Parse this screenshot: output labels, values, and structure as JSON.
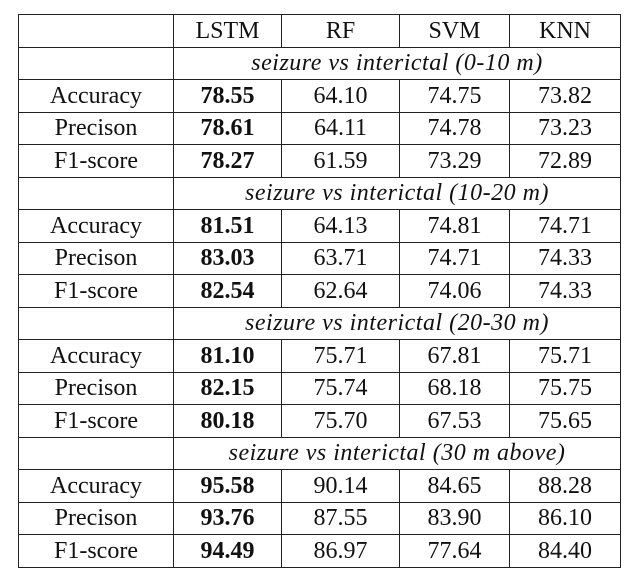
{
  "table": {
    "columns": [
      "",
      "LSTM",
      "RF",
      "SVM",
      "KNN"
    ],
    "sections": [
      {
        "title": "seizure vs interictal (0-10 m)",
        "rows": [
          {
            "metric": "Accuracy",
            "values": [
              "78.55",
              "64.10",
              "74.75",
              "73.82"
            ]
          },
          {
            "metric": "Precison",
            "values": [
              "78.61",
              "64.11",
              "74.78",
              "73.23"
            ]
          },
          {
            "metric": "F1-score",
            "values": [
              "78.27",
              "61.59",
              "73.29",
              "72.89"
            ]
          }
        ]
      },
      {
        "title": "seizure vs interictal (10-20 m)",
        "rows": [
          {
            "metric": "Accuracy",
            "values": [
              "81.51",
              "64.13",
              "74.81",
              "74.71"
            ]
          },
          {
            "metric": "Precison",
            "values": [
              "83.03",
              "63.71",
              "74.71",
              "74.33"
            ]
          },
          {
            "metric": "F1-score",
            "values": [
              "82.54",
              "62.64",
              "74.06",
              "74.33"
            ]
          }
        ]
      },
      {
        "title": "seizure vs interictal (20-30 m)",
        "rows": [
          {
            "metric": "Accuracy",
            "values": [
              "81.10",
              "75.71",
              "67.81",
              "75.71"
            ]
          },
          {
            "metric": "Precison",
            "values": [
              "82.15",
              "75.74",
              "68.18",
              "75.75"
            ]
          },
          {
            "metric": "F1-score",
            "values": [
              "80.18",
              "75.70",
              "67.53",
              "75.65"
            ]
          }
        ]
      },
      {
        "title": "seizure vs interictal (30 m above)",
        "rows": [
          {
            "metric": "Accuracy",
            "values": [
              "95.58",
              "90.14",
              "84.65",
              "88.28"
            ]
          },
          {
            "metric": "Precison",
            "values": [
              "93.76",
              "87.55",
              "83.90",
              "86.10"
            ]
          },
          {
            "metric": "F1-score",
            "values": [
              "94.49",
              "86.97",
              "77.64",
              "84.40"
            ]
          }
        ]
      }
    ],
    "bold_column_index": 0
  }
}
